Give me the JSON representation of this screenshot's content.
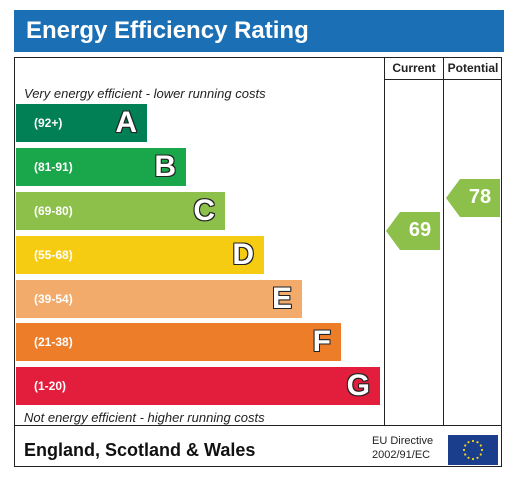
{
  "title": "Energy Efficiency Rating",
  "columns": {
    "current": "Current",
    "potential": "Potential"
  },
  "notes": {
    "top": "Very energy efficient - lower running costs",
    "bottom": "Not energy efficient - higher running costs"
  },
  "bands": [
    {
      "range": "(92+)",
      "letter": "A",
      "color": "#008054"
    },
    {
      "range": "(81-91)",
      "letter": "B",
      "color": "#1aa64b"
    },
    {
      "range": "(69-80)",
      "letter": "C",
      "color": "#8dc04a"
    },
    {
      "range": "(55-68)",
      "letter": "D",
      "color": "#f6cc12"
    },
    {
      "range": "(39-54)",
      "letter": "E",
      "color": "#f3ab6b"
    },
    {
      "range": "(21-38)",
      "letter": "F",
      "color": "#ee7d2a"
    },
    {
      "range": "(1-20)",
      "letter": "G",
      "color": "#e31d3c"
    }
  ],
  "ratings": {
    "current": {
      "value": "69",
      "color": "#8dc04a"
    },
    "potential": {
      "value": "78",
      "color": "#8dc04a"
    }
  },
  "footer": {
    "country": "England, Scotland & Wales",
    "directive_line1": "EU Directive",
    "directive_line2": "2002/91/EC",
    "flag_color": "#1a3e8c",
    "star_color": "#f6d515"
  }
}
